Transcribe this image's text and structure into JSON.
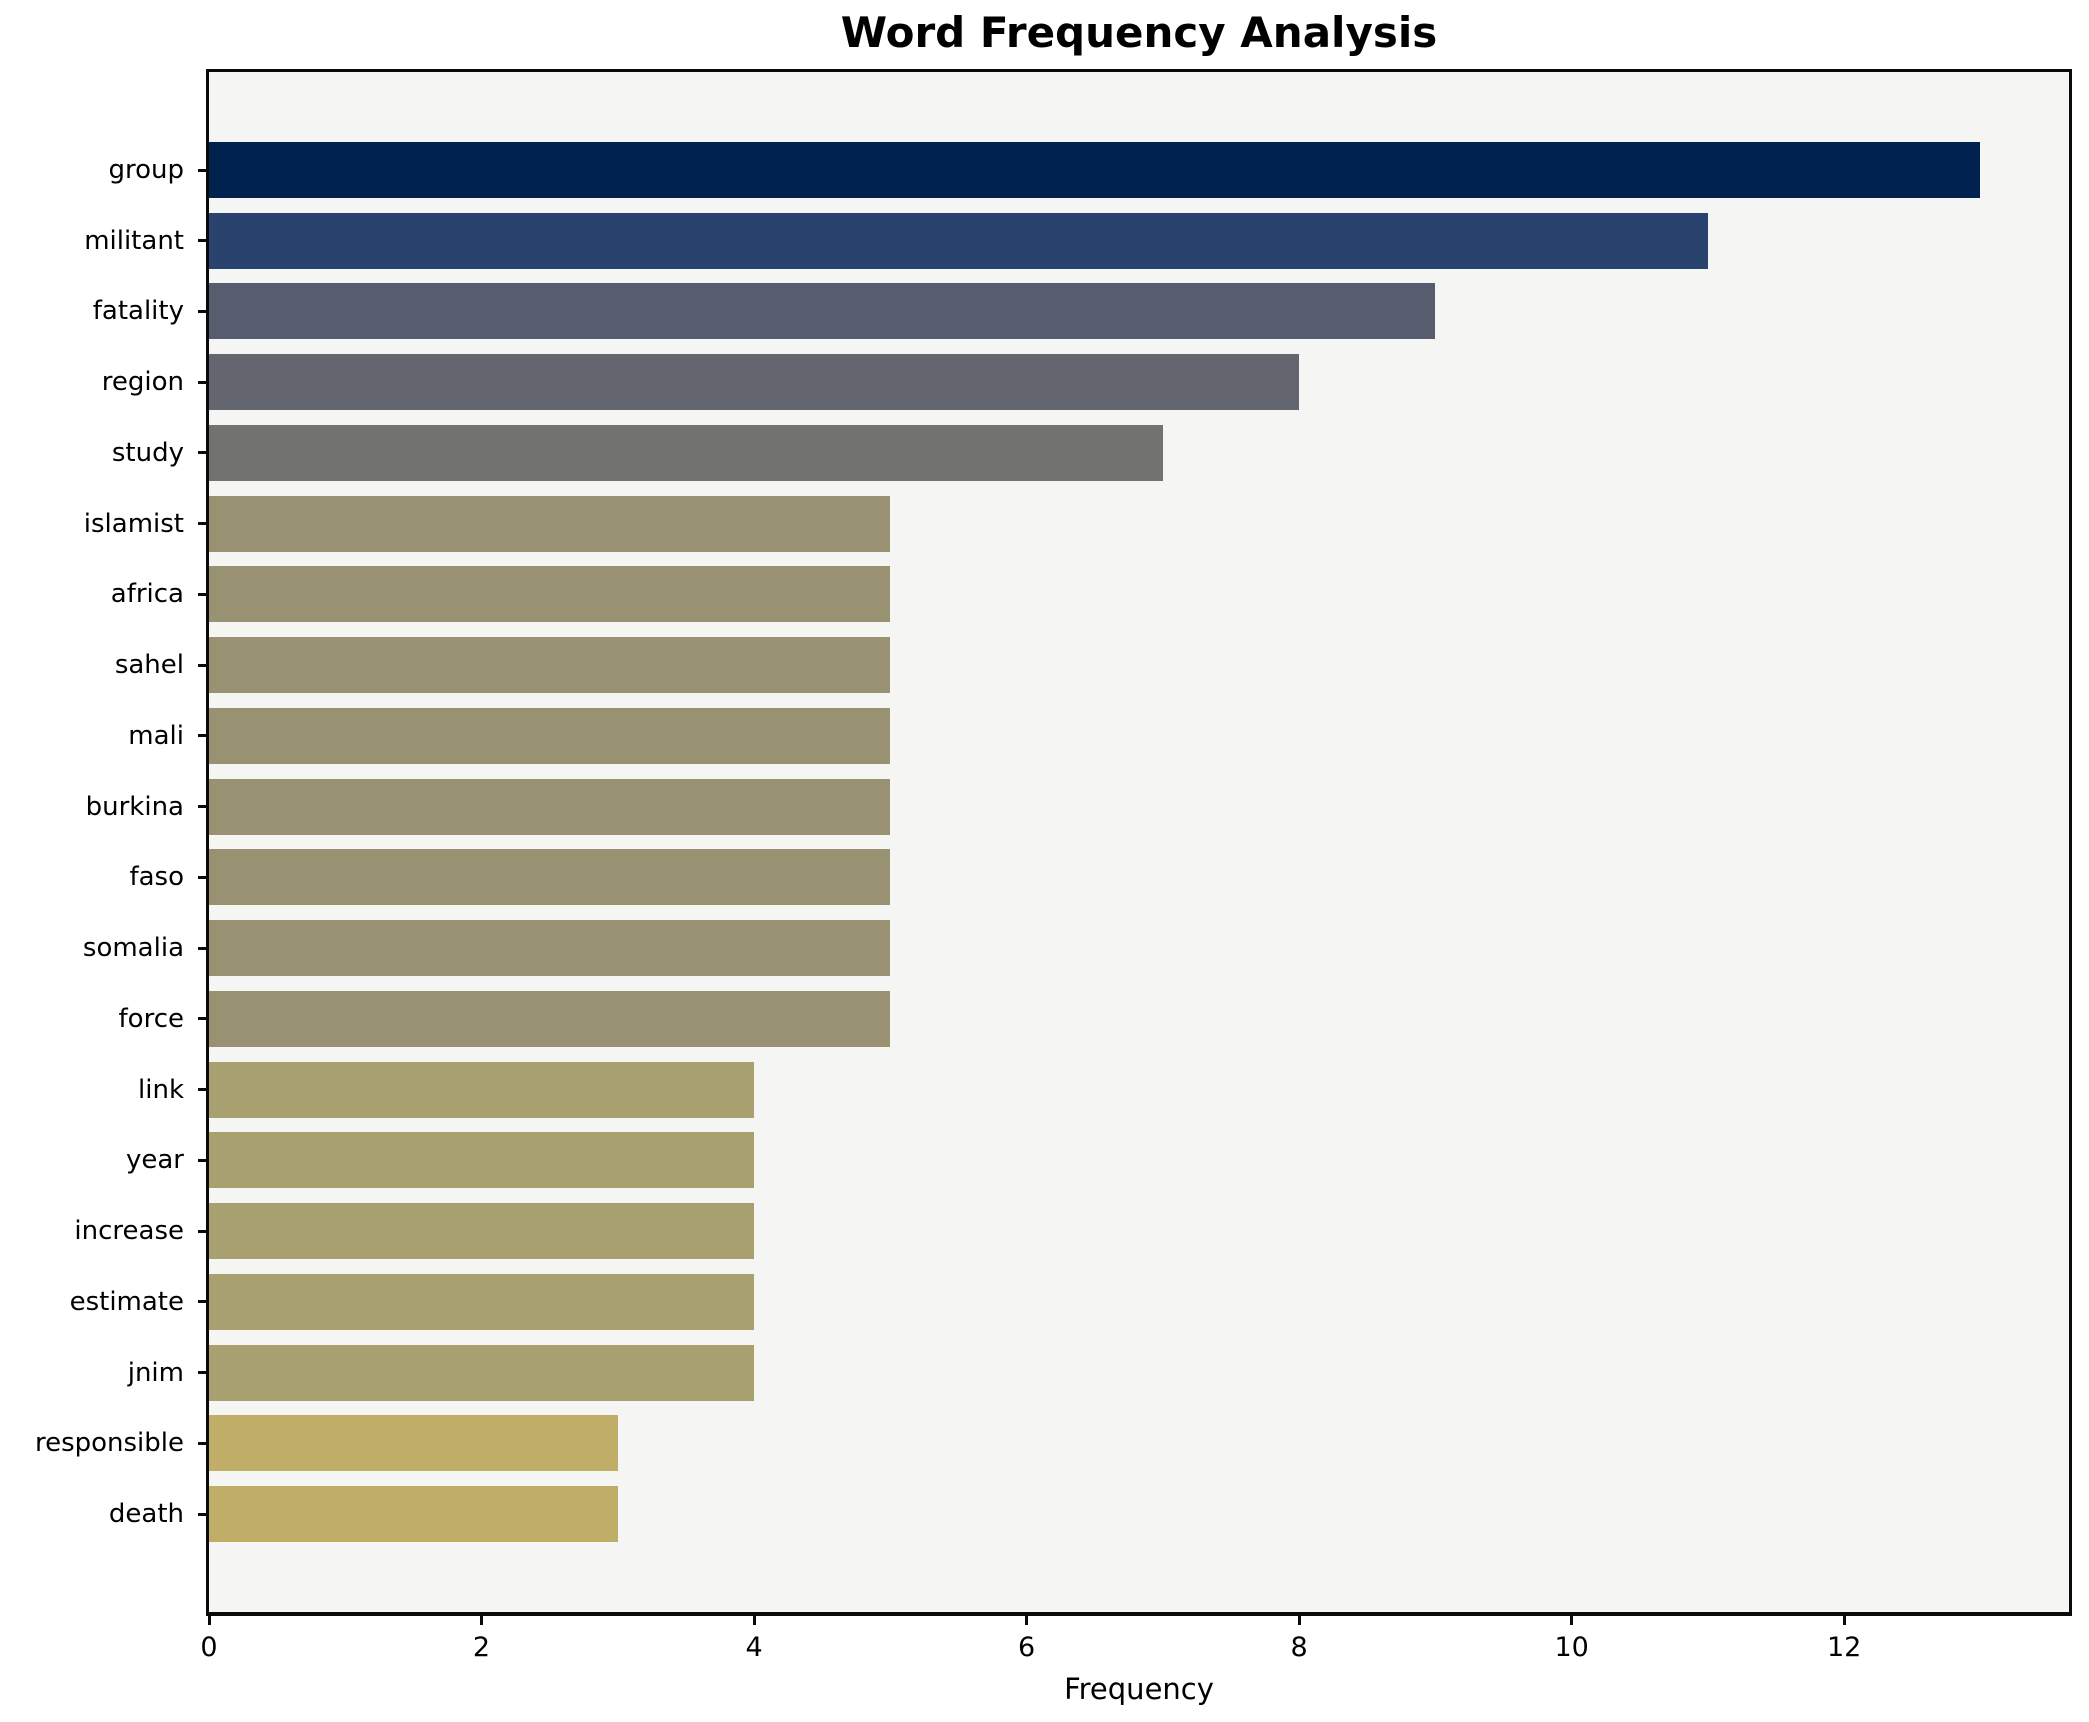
{
  "title": "Word Frequency Analysis",
  "chart_data": {
    "type": "bar",
    "orientation": "horizontal",
    "title": "Word Frequency Analysis",
    "xlabel": "Frequency",
    "ylabel": "",
    "xlim": [
      0,
      13.65
    ],
    "x_ticks": [
      0,
      2,
      4,
      6,
      8,
      10,
      12
    ],
    "grid": false,
    "legend": "none",
    "plot_background": "#f5f5f3",
    "figure_background": "#ffffff",
    "categories": [
      "group",
      "militant",
      "fatality",
      "region",
      "study",
      "islamist",
      "africa",
      "sahel",
      "mali",
      "burkina",
      "faso",
      "somalia",
      "force",
      "link",
      "year",
      "increase",
      "estimate",
      "jnim",
      "responsible",
      "death"
    ],
    "values": [
      13,
      11,
      9,
      8,
      7,
      5,
      5,
      5,
      5,
      5,
      5,
      5,
      5,
      4,
      4,
      4,
      4,
      4,
      3,
      3
    ],
    "bar_colors": [
      "#00224e",
      "#2a436e",
      "#575c6e",
      "#63656f",
      "#727271",
      "#989273",
      "#989273",
      "#989273",
      "#989273",
      "#989273",
      "#989273",
      "#989273",
      "#989273",
      "#a9a06f",
      "#a9a06f",
      "#a9a06f",
      "#a9a06f",
      "#a9a06f",
      "#c0ae68",
      "#c0ae68"
    ],
    "colormap": "cividis-reversed-by-value"
  }
}
